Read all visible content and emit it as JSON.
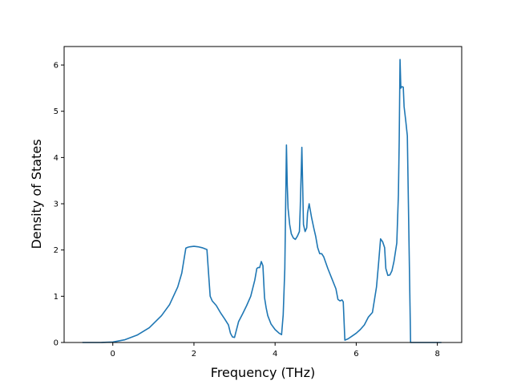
{
  "chart_data": {
    "type": "line",
    "xlabel": "Frequency (THz)",
    "ylabel": "Density of States",
    "xlim": [
      -1.2,
      8.6
    ],
    "ylim": [
      0,
      6.4
    ],
    "xticks": [
      0,
      2,
      4,
      6,
      8
    ],
    "yticks": [
      0,
      1,
      2,
      3,
      4,
      5,
      6
    ],
    "xtick_labels": [
      "0",
      "2",
      "4",
      "6",
      "8"
    ],
    "ytick_labels": [
      "0",
      "1",
      "2",
      "3",
      "4",
      "5",
      "6"
    ],
    "grid": false,
    "colors": {
      "line": "#1f77b4",
      "axes": "#000000"
    },
    "series": [
      {
        "x": [
          -0.75,
          -0.3,
          0.0,
          0.3,
          0.6,
          0.9,
          1.2,
          1.4,
          1.6,
          1.7,
          1.8,
          1.85,
          1.9,
          2.0,
          2.1,
          2.2,
          2.32,
          2.36,
          2.4,
          2.45,
          2.55,
          2.65,
          2.75,
          2.85,
          2.9,
          2.95,
          3.0,
          3.1,
          3.2,
          3.3,
          3.4,
          3.5,
          3.55,
          3.58,
          3.62,
          3.66,
          3.7,
          3.74,
          3.78,
          3.82,
          3.9,
          4.0,
          4.1,
          4.16,
          4.2,
          4.24,
          4.28,
          4.3,
          4.32,
          4.36,
          4.4,
          4.45,
          4.5,
          4.55,
          4.6,
          4.62,
          4.66,
          4.68,
          4.7,
          4.74,
          4.78,
          4.8,
          4.84,
          4.9,
          4.96,
          5.0,
          5.05,
          5.1,
          5.15,
          5.2,
          5.3,
          5.4,
          5.5,
          5.55,
          5.6,
          5.65,
          5.68,
          5.72,
          5.8,
          5.9,
          6.0,
          6.1,
          6.2,
          6.3,
          6.4,
          6.5,
          6.55,
          6.6,
          6.65,
          6.7,
          6.73,
          6.78,
          6.83,
          6.88,
          6.93,
          7.0,
          7.04,
          7.06,
          7.08,
          7.1,
          7.12,
          7.14,
          7.16,
          7.18,
          7.22,
          7.26,
          7.34,
          7.36,
          7.4,
          7.42,
          7.6,
          8.1
        ],
        "y": [
          0,
          0,
          0.01,
          0.06,
          0.16,
          0.32,
          0.58,
          0.82,
          1.2,
          1.5,
          2.04,
          2.06,
          2.07,
          2.08,
          2.07,
          2.05,
          2.01,
          1.5,
          1.0,
          0.9,
          0.8,
          0.65,
          0.52,
          0.38,
          0.2,
          0.12,
          0.11,
          0.45,
          0.62,
          0.8,
          1.0,
          1.35,
          1.6,
          1.62,
          1.62,
          1.75,
          1.66,
          0.97,
          0.75,
          0.58,
          0.4,
          0.28,
          0.2,
          0.17,
          0.6,
          1.6,
          4.27,
          3.4,
          2.9,
          2.55,
          2.35,
          2.26,
          2.23,
          2.3,
          2.4,
          2.9,
          4.22,
          3.4,
          2.55,
          2.4,
          2.48,
          2.8,
          3.0,
          2.7,
          2.45,
          2.3,
          2.05,
          1.92,
          1.92,
          1.85,
          1.6,
          1.38,
          1.16,
          0.93,
          0.9,
          0.92,
          0.88,
          0.05,
          0.08,
          0.14,
          0.2,
          0.28,
          0.38,
          0.55,
          0.65,
          1.2,
          1.7,
          2.24,
          2.18,
          2.05,
          1.6,
          1.45,
          1.46,
          1.55,
          1.75,
          2.15,
          3.2,
          4.4,
          6.12,
          5.5,
          5.53,
          5.53,
          5.52,
          5.1,
          4.8,
          4.47,
          0,
          0,
          0,
          0,
          0,
          0
        ]
      }
    ]
  }
}
